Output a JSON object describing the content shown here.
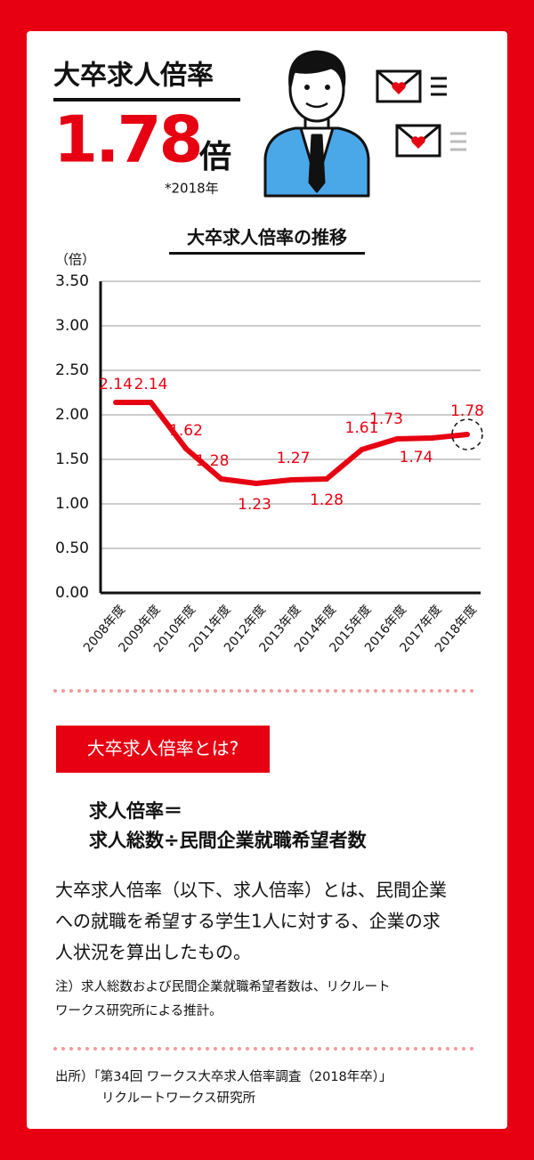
{
  "header": {
    "title": "大卒求人倍率",
    "value": "1.78",
    "unit": "倍",
    "note": "*2018年"
  },
  "chart_data": {
    "type": "line",
    "title": "大卒求人倍率の推移",
    "y_label": "（倍）",
    "categories": [
      "2008年度",
      "2009年度",
      "2010年度",
      "2011年度",
      "2012年度",
      "2013年度",
      "2014年度",
      "2015年度",
      "2016年度",
      "2017年度",
      "2018年度"
    ],
    "values": [
      2.14,
      2.14,
      1.62,
      1.28,
      1.23,
      1.27,
      1.28,
      1.61,
      1.73,
      1.74,
      1.78
    ],
    "color": "#e60012",
    "ylim": [
      0,
      3.5
    ],
    "yticks": [
      {
        "value": 0,
        "label": "0.00"
      },
      {
        "value": 0.5,
        "label": "0.50"
      },
      {
        "value": 1,
        "label": "1.00"
      },
      {
        "value": 1.5,
        "label": "1.50"
      },
      {
        "value": 2,
        "label": "2.00"
      },
      {
        "value": 2.5,
        "label": "2.50"
      },
      {
        "value": 3,
        "label": "3.00"
      },
      {
        "value": 3.5,
        "label": "3.50"
      }
    ],
    "grid": true
  },
  "definition": {
    "heading": "大卒求人倍率とは?",
    "formula": [
      "求人倍率＝",
      "求人総数÷民間企業就職希望者数"
    ],
    "body": [
      "大卒求人倍率（以下、求人倍率）とは、民間企業",
      "への就職を希望する学生1人に対する、企業の求",
      "人状況を算出したもの。"
    ],
    "note": [
      "注）求人総数および民間企業就職希望者数は、リクルート",
      "ワークス研究所による推計。"
    ]
  },
  "source": [
    "出所）「第34回 ワークス大卒求人倍率調査（2018年卒）」",
    "リクルートワークス研究所"
  ]
}
